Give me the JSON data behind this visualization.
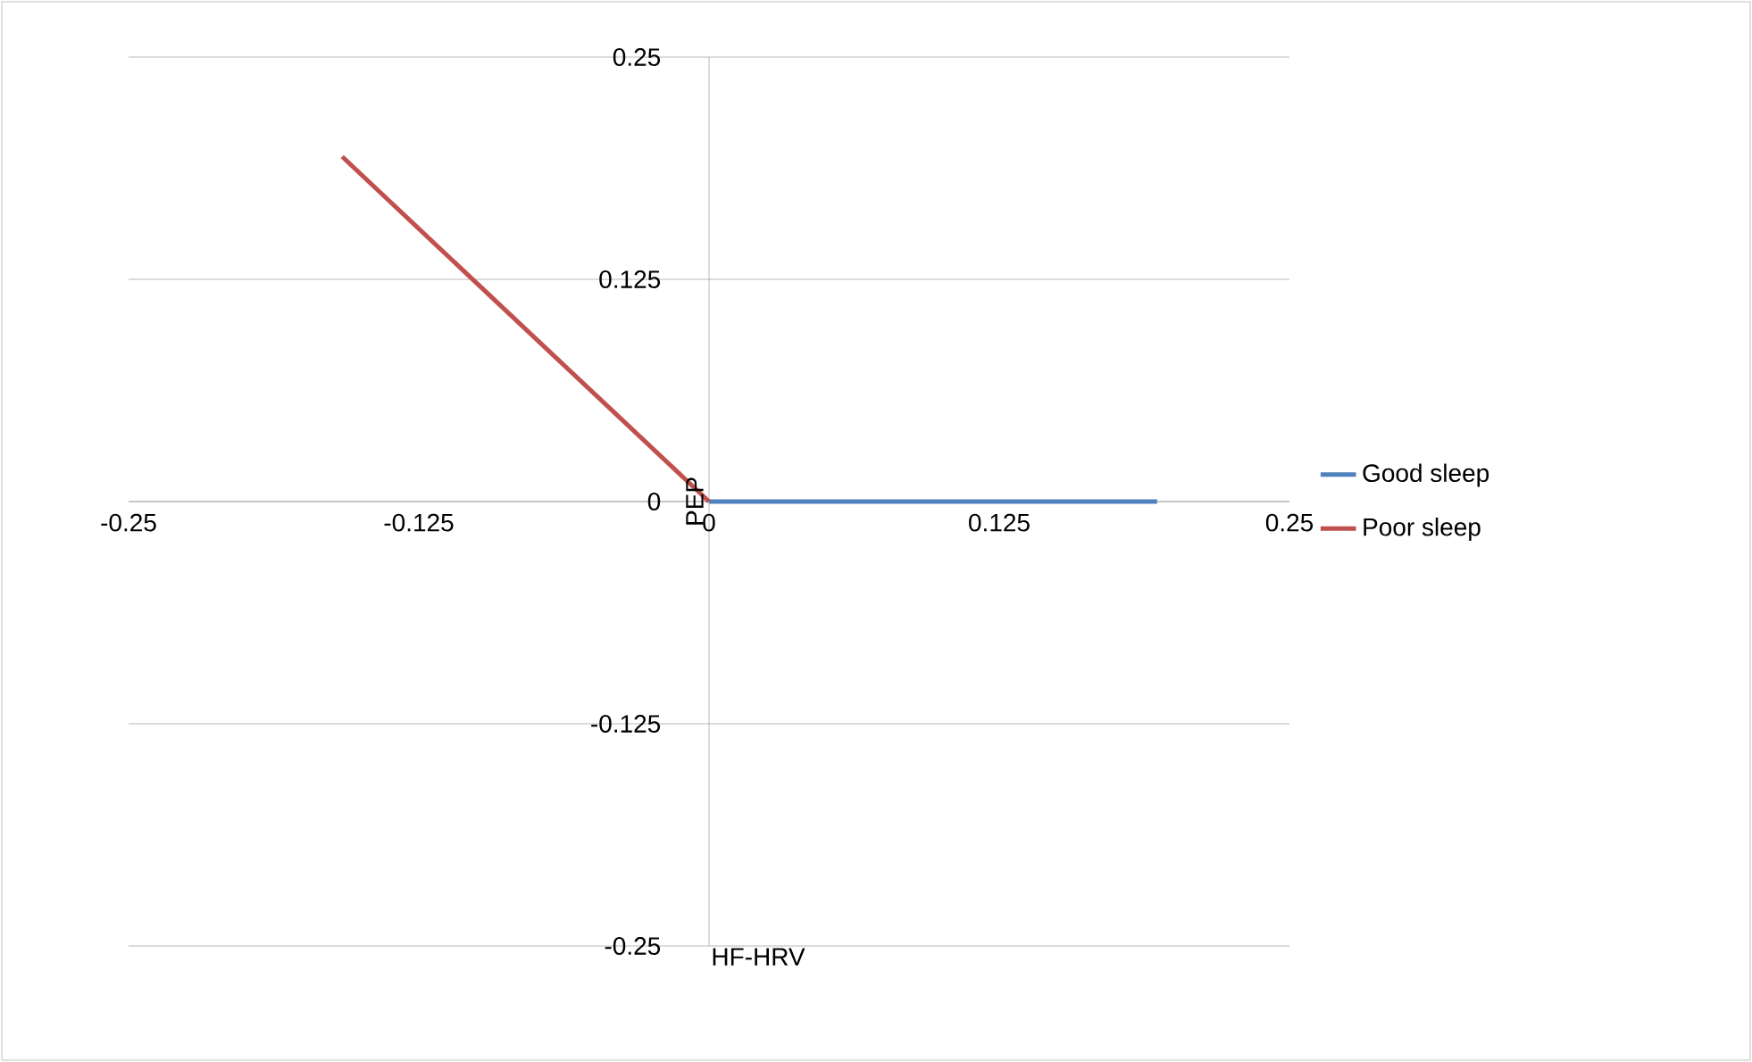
{
  "chart_data": {
    "type": "line",
    "xlabel": "HF-HRV",
    "ylabel": "PEP",
    "xlim": [
      -0.25,
      0.25
    ],
    "ylim": [
      -0.25,
      0.25
    ],
    "xticks": [
      -0.25,
      -0.125,
      0,
      0.125,
      0.25
    ],
    "yticks": [
      -0.25,
      -0.125,
      0,
      0.125,
      0.25
    ],
    "grid": "y",
    "legend": "right",
    "marker": "none",
    "line_style": "solid",
    "series": [
      {
        "name": "Good sleep",
        "color": "#4f81bd",
        "x": [
          0,
          0.193
        ],
        "values": [
          0,
          0
        ]
      },
      {
        "name": "Poor sleep",
        "color": "#c0504d",
        "x": [
          0,
          -0.158
        ],
        "values": [
          0,
          0.194
        ]
      }
    ]
  }
}
